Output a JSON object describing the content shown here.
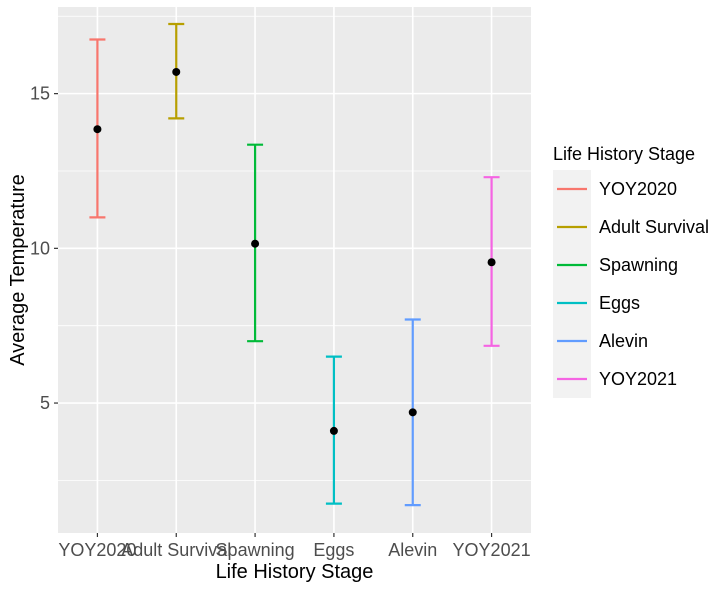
{
  "chart_data": {
    "type": "errorbar",
    "xlabel": "Life History Stage",
    "ylabel": "Average Temperature",
    "categories": [
      "YOY2020",
      "Adult Survival",
      "Spawning",
      "Eggs",
      "Alevin",
      "YOY2021"
    ],
    "ylim": [
      0.8,
      17.8
    ],
    "yticks": [
      5,
      10,
      15
    ],
    "grid": true,
    "legend": {
      "title": "Life History Stage",
      "placement": "right",
      "entries": [
        "YOY2020",
        "Adult Survival",
        "Spawning",
        "Eggs",
        "Alevin",
        "YOY2021"
      ]
    },
    "colors": {
      "YOY2020": "#F8766D",
      "Adult Survival": "#B79F00",
      "Spawning": "#00BA38",
      "Eggs": "#00BFC4",
      "Alevin": "#619CFF",
      "YOY2021": "#F564E3"
    },
    "points": [
      {
        "category": "YOY2020",
        "mean": 13.85,
        "lower": 11.0,
        "upper": 16.75
      },
      {
        "category": "Adult Survival",
        "mean": 15.7,
        "lower": 14.2,
        "upper": 17.25
      },
      {
        "category": "Spawning",
        "mean": 10.15,
        "lower": 7.0,
        "upper": 13.35
      },
      {
        "category": "Eggs",
        "mean": 4.1,
        "lower": 1.75,
        "upper": 6.5
      },
      {
        "category": "Alevin",
        "mean": 4.7,
        "lower": 1.7,
        "upper": 7.7
      },
      {
        "category": "YOY2021",
        "mean": 9.55,
        "lower": 6.85,
        "upper": 12.3
      }
    ]
  }
}
